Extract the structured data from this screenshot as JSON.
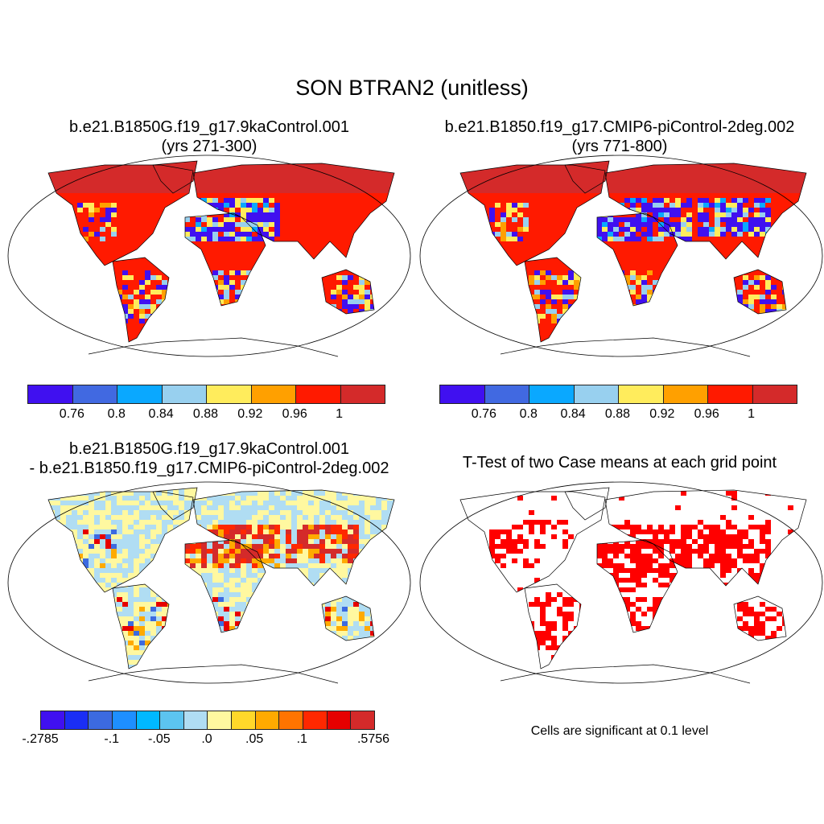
{
  "title": "SON BTRAN2 (unitless)",
  "panels": [
    {
      "title": "b.e21.B1850G.f19_g17.9kaControl.001",
      "subtitle": "(yrs 271-300)"
    },
    {
      "title": "b.e21.B1850.f19_g17.CMIP6-piControl-2deg.002",
      "subtitle": "(yrs 771-800)"
    },
    {
      "title": "b.e21.B1850G.f19_g17.9kaControl.001",
      "subtitle": "- b.e21.B1850.f19_g17.CMIP6-piControl-2deg.002"
    },
    {
      "title": "T-Test of two Case means at each grid point",
      "note": "Cells are significant at 0.1 level"
    }
  ],
  "colorbar_abs": {
    "colors": [
      "#4010f0",
      "#4169e1",
      "#0aa8ff",
      "#98d0ef",
      "#ffec5c",
      "#ffa000",
      "#ff1a00",
      "#d42a2a"
    ],
    "labels": [
      "0.76",
      "0.8",
      "0.84",
      "0.88",
      "0.92",
      "0.96",
      "1"
    ]
  },
  "colorbar_diff": {
    "colors": [
      "#4010f0",
      "#1a2ef5",
      "#3c6ae0",
      "#1e8fff",
      "#00b8ff",
      "#5cc4f0",
      "#b0ddf3",
      "#fff8a0",
      "#ffd82a",
      "#ffaa00",
      "#ff7400",
      "#ff2800",
      "#e60000",
      "#d42a2a"
    ],
    "labels": [
      "-.2785",
      "-.1",
      "-.05",
      ".0",
      ".05",
      ".1",
      ".5756"
    ]
  },
  "significance_color": "#ff0000"
}
